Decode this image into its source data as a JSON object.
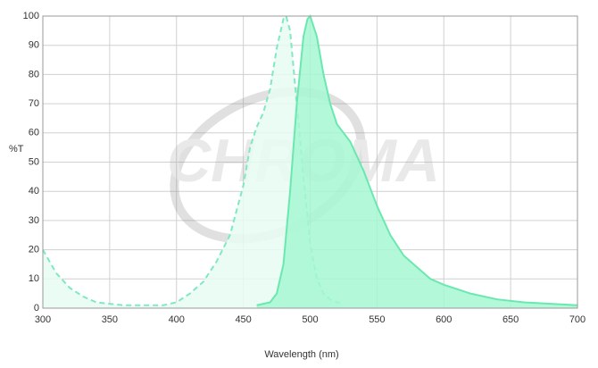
{
  "chart_data": {
    "type": "area",
    "watermark": "CHROMA",
    "xlabel": "Wavelength (nm)",
    "ylabel": "%T",
    "xlim": [
      300,
      700
    ],
    "xticks": [
      300,
      350,
      400,
      450,
      500,
      550,
      600,
      650,
      700
    ],
    "ylim": [
      0,
      100
    ],
    "yticks": [
      0,
      10,
      20,
      30,
      40,
      50,
      60,
      70,
      80,
      90,
      100
    ],
    "grid": true,
    "series": [
      {
        "color": "#80e8c2",
        "fill": "#e6fcf2",
        "dashed": true,
        "x": [
          300,
          310,
          320,
          330,
          340,
          350,
          360,
          370,
          380,
          390,
          400,
          410,
          420,
          430,
          440,
          450,
          455,
          460,
          465,
          470,
          475,
          480,
          482,
          485,
          490,
          495,
          500,
          505,
          510,
          515,
          520,
          525
        ],
        "values": [
          20,
          12,
          7,
          4,
          2,
          1.5,
          1,
          1,
          1,
          1,
          2,
          5,
          9,
          16,
          25,
          42,
          55,
          62,
          67,
          75,
          89,
          99,
          100,
          95,
          70,
          45,
          22,
          10,
          5,
          3,
          2,
          1.5
        ]
      },
      {
        "color": "#6ae8b0",
        "fill": "#a6f7d2",
        "dashed": false,
        "x": [
          460,
          470,
          475,
          480,
          485,
          490,
          495,
          498,
          500,
          505,
          510,
          515,
          520,
          530,
          540,
          550,
          560,
          570,
          580,
          590,
          600,
          620,
          640,
          660,
          680,
          700
        ],
        "values": [
          1,
          2,
          5,
          15,
          40,
          70,
          93,
          99,
          100,
          93,
          80,
          70,
          63,
          57,
          47,
          35,
          25,
          18,
          14,
          10,
          8,
          5,
          3,
          2,
          1.5,
          1
        ]
      }
    ]
  }
}
